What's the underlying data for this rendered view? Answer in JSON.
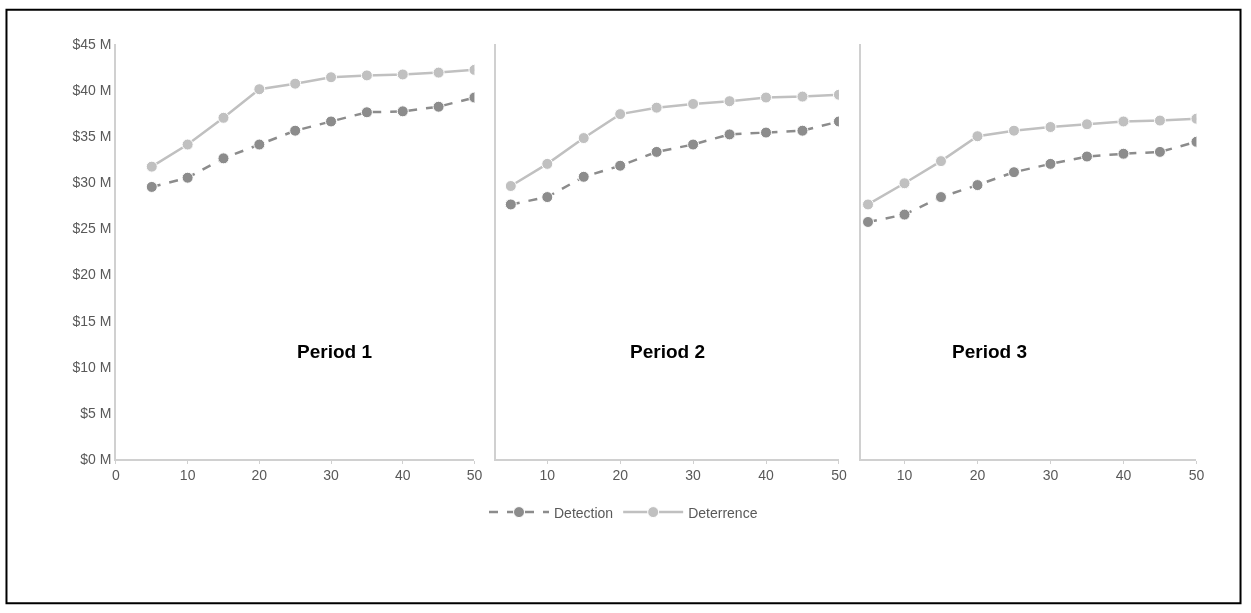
{
  "chart_data": [
    {
      "type": "line",
      "x": [
        5,
        10,
        15,
        20,
        25,
        30,
        35,
        40,
        45,
        50
      ],
      "xlim": [
        0,
        50
      ],
      "xticks": [
        0,
        10,
        20,
        30,
        40,
        50
      ],
      "ylim": [
        0,
        45
      ],
      "yticks": [
        {
          "value": 0,
          "label": "$0 M"
        },
        {
          "value": 5,
          "label": "$5 M"
        },
        {
          "value": 10,
          "label": "$10 M"
        },
        {
          "value": 15,
          "label": "$15 M"
        },
        {
          "value": 20,
          "label": "$20 M"
        },
        {
          "value": 25,
          "label": "$25 M"
        },
        {
          "value": 30,
          "label": "$30 M"
        },
        {
          "value": 35,
          "label": "$35 M"
        },
        {
          "value": 40,
          "label": "$40 M"
        },
        {
          "value": 45,
          "label": "$45 M"
        }
      ],
      "marker": "circle",
      "legend": "bottom",
      "grid": false,
      "annotations": [
        "Period 1"
      ],
      "series": [
        {
          "name": "Detection",
          "color": "#8c8c8c",
          "line_style": "dashed",
          "values": [
            29.5,
            30.5,
            32.6,
            34.1,
            35.6,
            36.6,
            37.6,
            37.7,
            38.2,
            39.2
          ]
        },
        {
          "name": "Deterrence",
          "color": "#c0c0c0",
          "line_style": "solid",
          "values": [
            31.7,
            34.1,
            37.0,
            40.1,
            40.7,
            41.4,
            41.6,
            41.7,
            41.9,
            42.2
          ]
        }
      ]
    },
    {
      "type": "line",
      "x": [
        5,
        10,
        15,
        20,
        25,
        30,
        35,
        40,
        45,
        50
      ],
      "xlim": [
        3,
        50
      ],
      "xticks": [
        10,
        20,
        30,
        40,
        50
      ],
      "ylim": [
        0,
        45
      ],
      "tick_labels": "x",
      "marker": "circle",
      "grid": false,
      "annotations": [
        "Period 2"
      ],
      "series": [
        {
          "color": "#8c8c8c",
          "line_style": "dashed",
          "values": [
            27.6,
            28.4,
            30.6,
            31.8,
            33.3,
            34.1,
            35.2,
            35.4,
            35.6,
            36.6
          ]
        },
        {
          "color": "#c0c0c0",
          "line_style": "solid",
          "values": [
            29.6,
            32.0,
            34.8,
            37.4,
            38.1,
            38.5,
            38.8,
            39.2,
            39.3,
            39.5
          ]
        }
      ]
    },
    {
      "type": "line",
      "x": [
        5,
        10,
        15,
        20,
        25,
        30,
        35,
        40,
        45,
        50
      ],
      "xlim": [
        4,
        50
      ],
      "xticks": [
        10,
        20,
        30,
        40,
        50
      ],
      "ylim": [
        0,
        45
      ],
      "tick_labels": "x",
      "marker": "circle",
      "grid": false,
      "annotations": [
        "Period 3"
      ],
      "series": [
        {
          "color": "#8c8c8c",
          "line_style": "dashed",
          "values": [
            25.7,
            26.5,
            28.4,
            29.7,
            31.1,
            32.0,
            32.8,
            33.1,
            33.3,
            34.4
          ]
        },
        {
          "color": "#c0c0c0",
          "line_style": "solid",
          "values": [
            27.6,
            29.9,
            32.3,
            35.0,
            35.6,
            36.0,
            36.3,
            36.6,
            36.7,
            36.9
          ]
        }
      ]
    }
  ]
}
